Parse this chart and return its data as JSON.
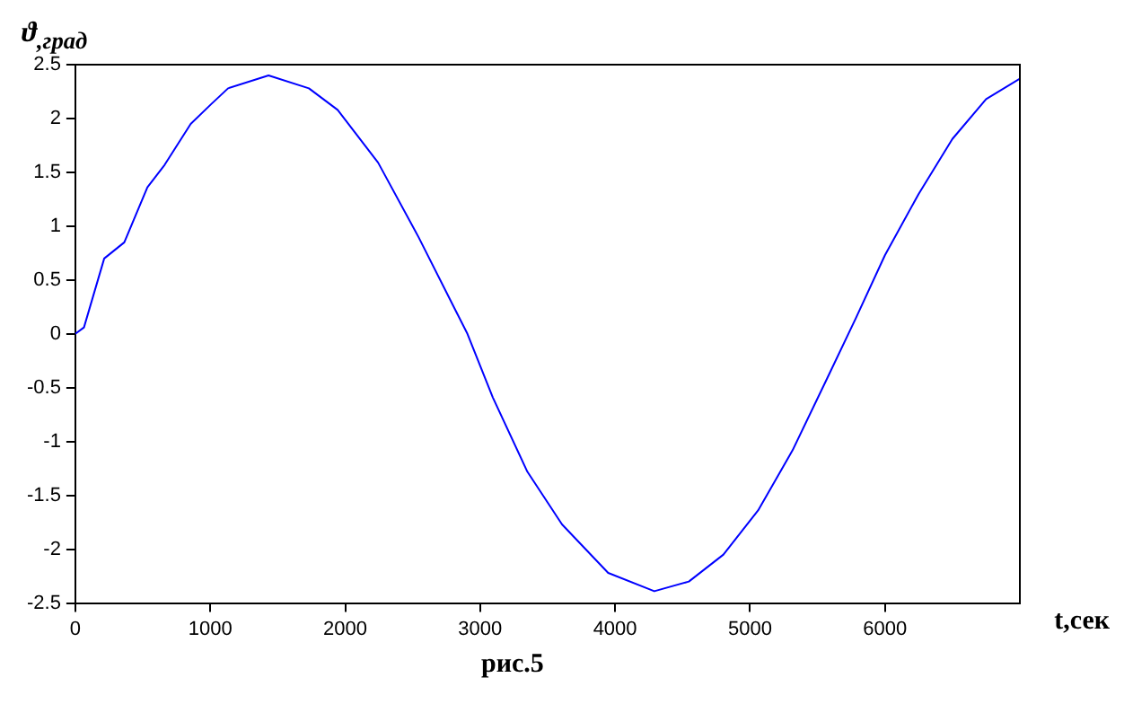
{
  "chart_data": {
    "type": "line",
    "xlabel": "t,сек",
    "ylabel": "ϑ$_{,град}$",
    "annotations": [
      "рис.5"
    ],
    "x": [
      0,
      64,
      214,
      363,
      534,
      662,
      855,
      1004,
      1132,
      1432,
      1731,
      1944,
      2244,
      2543,
      2906,
      3094,
      3350,
      3607,
      3949,
      4291,
      4547,
      4803,
      5060,
      5316,
      5573,
      5786,
      6000,
      6250,
      6500,
      6750,
      7000
    ],
    "series": [
      {
        "color": "#0000ff",
        "values": [
          0,
          0.06,
          0.7,
          0.85,
          1.36,
          1.57,
          1.95,
          2.13,
          2.28,
          2.4,
          2.28,
          2.08,
          1.59,
          0.9,
          0,
          -0.59,
          -1.28,
          -1.77,
          -2.22,
          -2.39,
          -2.3,
          -2.05,
          -1.64,
          -1.08,
          -0.41,
          0.15,
          0.73,
          1.3,
          1.81,
          2.18,
          2.37
        ]
      }
    ],
    "xlim": [
      0,
      7000
    ],
    "xticks": [
      0,
      1000,
      2000,
      3000,
      4000,
      5000,
      6000
    ],
    "ylim": [
      -2.5,
      2.5
    ],
    "yticks": [
      -2.5,
      -2,
      -1.5,
      -1,
      -0.5,
      0,
      0.5,
      1,
      1.5,
      2,
      2.5
    ],
    "grid": false,
    "legend": false,
    "marker": "none",
    "line_style": "solid"
  }
}
